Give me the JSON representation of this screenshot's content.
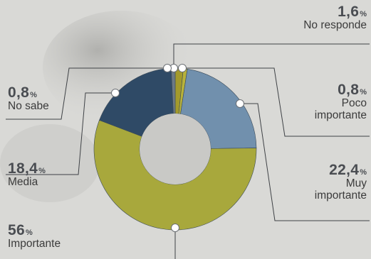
{
  "chart_data": {
    "type": "pie",
    "donut": true,
    "title": "",
    "unit": "%",
    "categories": [
      "No responde",
      "Poco importante",
      "Muy importante",
      "Importante",
      "Media",
      "No sabe"
    ],
    "values": [
      1.6,
      0.8,
      22.4,
      56,
      18.4,
      0.8
    ],
    "value_labels": [
      "1,6",
      "0,8",
      "22,4",
      "56",
      "18,4",
      "0,8"
    ],
    "label_lines": [
      [
        "No responde"
      ],
      [
        "Poco",
        "importante"
      ],
      [
        "Muy",
        "importante"
      ],
      [
        "Importante"
      ],
      [
        "Media"
      ],
      [
        "No sabe"
      ]
    ],
    "colors": [
      "#a39a2c",
      "#b8b23a",
      "#7190ad",
      "#a8a83c",
      "#2f4a66",
      "#6c7a86"
    ],
    "order": "clockwise-from-top"
  }
}
